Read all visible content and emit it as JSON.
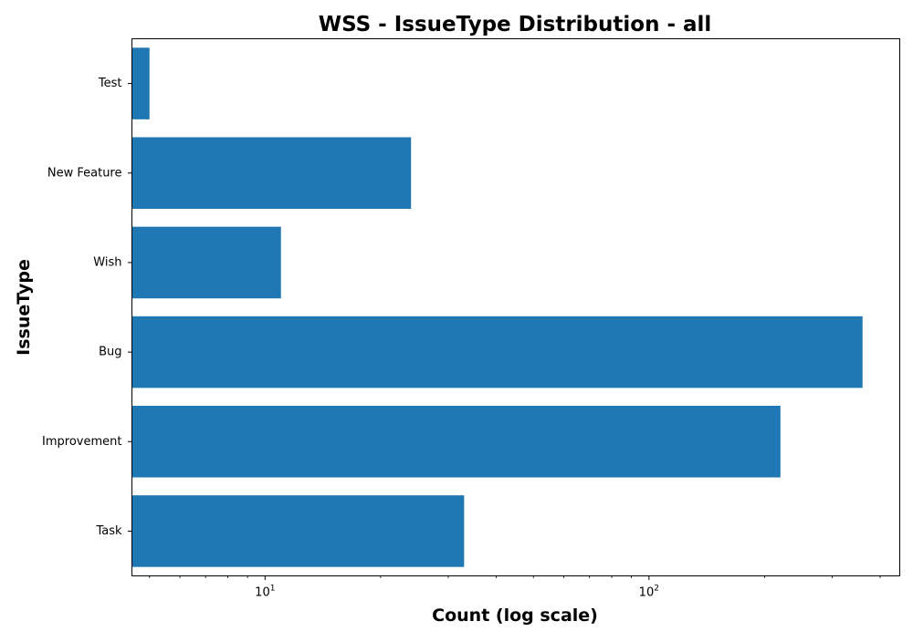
{
  "chart_data": {
    "type": "bar",
    "orientation": "horizontal",
    "title": "WSS - IssueType Distribution - all",
    "xlabel": "Count (log scale)",
    "ylabel": "IssueType",
    "x_scale": "log",
    "xlim": [
      4.5,
      450
    ],
    "x_ticks": [
      {
        "value": 10,
        "base": "10",
        "exponent": "1"
      },
      {
        "value": 100,
        "base": "10",
        "exponent": "2"
      }
    ],
    "categories": [
      "Task",
      "Improvement",
      "Bug",
      "Wish",
      "New Feature",
      "Test"
    ],
    "values": [
      33,
      220,
      360,
      11,
      24,
      5
    ],
    "bar_color": "#1f77b4",
    "grid": false,
    "legend": false
  }
}
